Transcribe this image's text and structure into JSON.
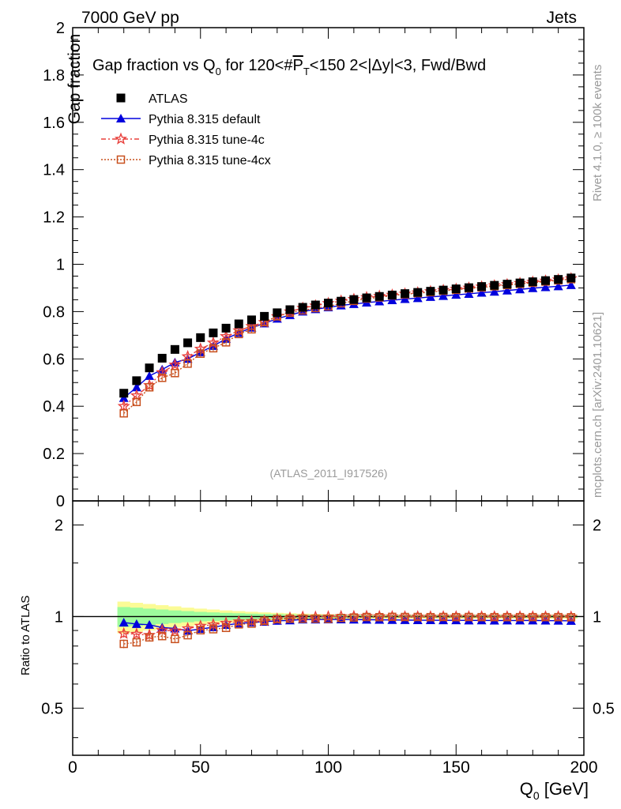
{
  "header": {
    "energy_label": "7000 GeV pp",
    "category_label": "Jets"
  },
  "side_labels": {
    "rivet": "Rivet 4.1.0, ≥ 100k events",
    "mcplots": "mcplots.cern.ch [arXiv:2401.10621]"
  },
  "analysis_id": "(ATLAS_2011_I917526)",
  "title": {
    "prefix": "Gap fraction vs Q",
    "sub0": "0",
    "mid": " for 120<#",
    "pbar": "P",
    "subT": "T",
    "suffix": "<150  2<|Δy|<3, Fwd/Bwd"
  },
  "axes": {
    "ylabel_main": "Gap fraction",
    "ylabel_ratio": "Ratio to ATLAS",
    "xlabel_main": "Q",
    "xlabel_sub": "0",
    "xlabel_unit": " [GeV]",
    "x_ticks": [
      "0",
      "50",
      "100",
      "150",
      "200"
    ],
    "y_ticks_main": [
      "0",
      "0.2",
      "0.4",
      "0.6",
      "0.8",
      "1",
      "1.2",
      "1.4",
      "1.6",
      "1.8",
      "2"
    ],
    "y_ticks_ratio": [
      "0.5",
      "1",
      "2"
    ]
  },
  "legend": [
    {
      "label": "ATLAS",
      "color": "#000000",
      "marker": "square"
    },
    {
      "label": "Pythia 8.315 default",
      "color": "#0000dd",
      "marker": "triangle"
    },
    {
      "label": "Pythia 8.315 tune-4c",
      "color": "#e8403c",
      "marker": "star"
    },
    {
      "label": "Pythia 8.315 tune-4cx",
      "color": "#c8501e",
      "marker": "open-square"
    }
  ],
  "chart_data": {
    "type": "scatter",
    "xlabel": "Q0 [GeV]",
    "ylabel": "Gap fraction",
    "xlim": [
      0,
      200
    ],
    "ylim": [
      0,
      2
    ],
    "ratio_ylim": [
      0.35,
      2.4
    ],
    "x": [
      20,
      25,
      30,
      35,
      40,
      45,
      50,
      55,
      60,
      65,
      70,
      75,
      80,
      85,
      90,
      95,
      100,
      105,
      110,
      115,
      120,
      125,
      130,
      135,
      140,
      145,
      150,
      155,
      160,
      165,
      170,
      175,
      180,
      185,
      190,
      195
    ],
    "series": [
      {
        "name": "ATLAS",
        "color": "#000000",
        "values": [
          0.455,
          0.508,
          0.562,
          0.603,
          0.64,
          0.668,
          0.69,
          0.71,
          0.73,
          0.748,
          0.765,
          0.78,
          0.795,
          0.808,
          0.818,
          0.828,
          0.836,
          0.844,
          0.851,
          0.858,
          0.864,
          0.87,
          0.876,
          0.881,
          0.886,
          0.891,
          0.896,
          0.901,
          0.906,
          0.911,
          0.916,
          0.921,
          0.926,
          0.931,
          0.936,
          0.942
        ]
      },
      {
        "name": "Pythia 8.315 default",
        "color": "#0000dd",
        "values": [
          0.435,
          0.48,
          0.528,
          0.555,
          0.585,
          0.6,
          0.628,
          0.655,
          0.685,
          0.71,
          0.732,
          0.75,
          0.77,
          0.785,
          0.8,
          0.81,
          0.818,
          0.826,
          0.832,
          0.838,
          0.843,
          0.848,
          0.853,
          0.857,
          0.862,
          0.866,
          0.871,
          0.875,
          0.88,
          0.884,
          0.889,
          0.894,
          0.899,
          0.903,
          0.907,
          0.912
        ]
      },
      {
        "name": "Pythia 8.315 tune-4c",
        "color": "#e8403c",
        "values": [
          0.4,
          0.445,
          0.488,
          0.543,
          0.575,
          0.61,
          0.642,
          0.668,
          0.695,
          0.72,
          0.738,
          0.755,
          0.78,
          0.8,
          0.815,
          0.825,
          0.835,
          0.845,
          0.852,
          0.86,
          0.865,
          0.87,
          0.875,
          0.88,
          0.885,
          0.89,
          0.895,
          0.9,
          0.905,
          0.91,
          0.915,
          0.92,
          0.925,
          0.93,
          0.935,
          0.94
        ]
      },
      {
        "name": "Pythia 8.315 tune-4cx",
        "color": "#c8501e",
        "values": [
          0.37,
          0.418,
          0.48,
          0.52,
          0.54,
          0.58,
          0.622,
          0.645,
          0.67,
          0.705,
          0.725,
          0.755,
          0.78,
          0.795,
          0.805,
          0.815,
          0.822,
          0.835,
          0.845,
          0.855,
          0.86,
          0.868,
          0.873,
          0.878,
          0.882,
          0.888,
          0.892,
          0.898,
          0.902,
          0.907,
          0.912,
          0.917,
          0.922,
          0.927,
          0.932,
          0.937
        ]
      }
    ],
    "ratio_band": {
      "green": [
        0.075,
        0.07,
        0.062,
        0.055,
        0.048,
        0.042,
        0.036,
        0.032,
        0.028,
        0.025,
        0.022,
        0.02,
        0.018,
        0.016,
        0.015,
        0.014,
        0.013,
        0.012,
        0.011,
        0.011,
        0.01,
        0.01,
        0.01,
        0.01,
        0.01,
        0.01,
        0.01,
        0.01,
        0.01,
        0.01,
        0.01,
        0.01,
        0.01,
        0.01,
        0.01,
        0.01
      ],
      "yellow": [
        0.12,
        0.11,
        0.1,
        0.09,
        0.08,
        0.07,
        0.062,
        0.055,
        0.048,
        0.042,
        0.037,
        0.032,
        0.028,
        0.025,
        0.022,
        0.02,
        0.018,
        0.017,
        0.016,
        0.015,
        0.015,
        0.015,
        0.015,
        0.015,
        0.015,
        0.015,
        0.015,
        0.015,
        0.015,
        0.015,
        0.015,
        0.015,
        0.015,
        0.015,
        0.015,
        0.015
      ]
    }
  }
}
